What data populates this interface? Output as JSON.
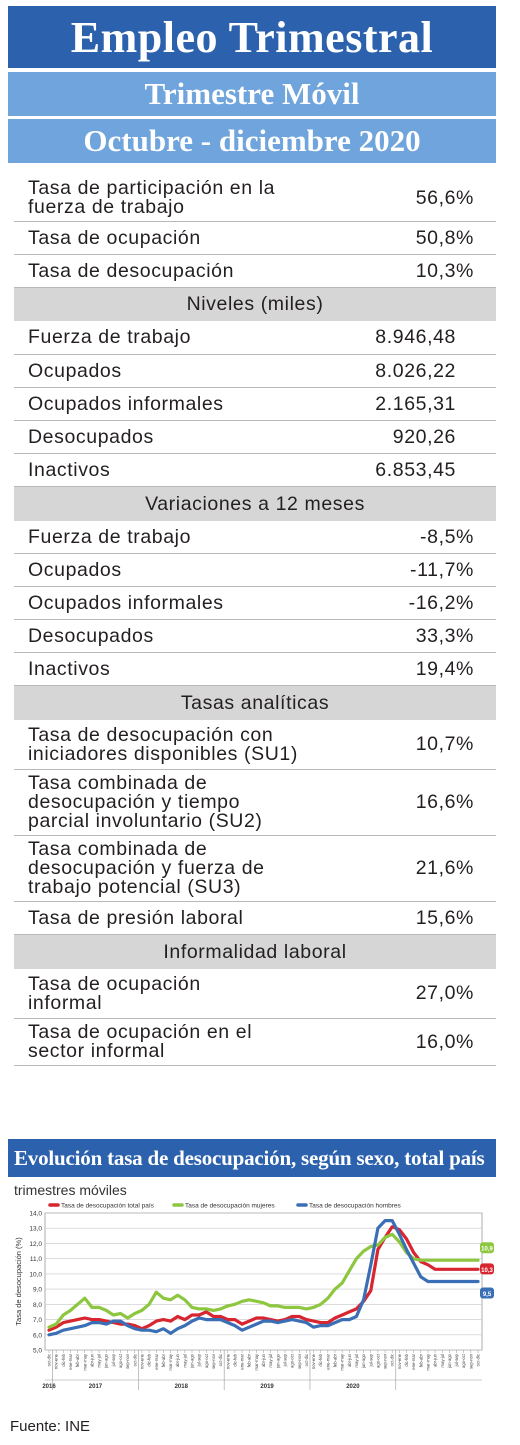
{
  "header": {
    "title": "Empleo Trimestral",
    "subtitle": "Trimestre Móvil",
    "period": "Octubre - diciembre 2020"
  },
  "rows": [
    {
      "type": "row",
      "label": "Tasa de participación en la\nfuerza de trabajo",
      "value": "56,6%"
    },
    {
      "type": "row",
      "label": "Tasa de ocupación",
      "value": "50,8%"
    },
    {
      "type": "row",
      "label": "Tasa de desocupación",
      "value": "10,3%"
    },
    {
      "type": "section",
      "label": "Niveles (miles)"
    },
    {
      "type": "row",
      "label": "Fuerza de trabajo",
      "value": "8.946,48"
    },
    {
      "type": "row",
      "label": "Ocupados",
      "value": "8.026,22"
    },
    {
      "type": "row",
      "label": "Ocupados informales",
      "value": "2.165,31"
    },
    {
      "type": "row",
      "label": "Desocupados",
      "value": "920,26"
    },
    {
      "type": "row",
      "label": "Inactivos",
      "value": "6.853,45"
    },
    {
      "type": "section",
      "label": "Variaciones a 12 meses"
    },
    {
      "type": "row",
      "label": "Fuerza de trabajo",
      "value": "-8,5%"
    },
    {
      "type": "row",
      "label": "Ocupados",
      "value": "-11,7%"
    },
    {
      "type": "row",
      "label": "Ocupados informales",
      "value": "-16,2%"
    },
    {
      "type": "row",
      "label": "Desocupados",
      "value": "33,3%"
    },
    {
      "type": "row",
      "label": "Inactivos",
      "value": "19,4%"
    },
    {
      "type": "section",
      "label": "Tasas analíticas"
    },
    {
      "type": "row",
      "label": "Tasa de desocupación con\niniciadores disponibles (SU1)",
      "value": "10,7%"
    },
    {
      "type": "row",
      "label": "Tasa combinada de\ndesocupación y tiempo\nparcial involuntario (SU2)",
      "value": "16,6%"
    },
    {
      "type": "row",
      "label": "Tasa combinada de\ndesocupación y fuerza de\ntrabajo potencial (SU3)",
      "value": "21,6%"
    },
    {
      "type": "row",
      "label": "Tasa de presión laboral",
      "value": "15,6%"
    },
    {
      "type": "section",
      "label": "Informalidad laboral"
    },
    {
      "type": "row",
      "label": "Tasa de ocupación\ninformal",
      "value": "27,0%"
    },
    {
      "type": "row",
      "label": "Tasa de ocupación en el\nsector informal",
      "value": "16,0%"
    }
  ],
  "chart_data": {
    "type": "line",
    "title": "Evolución tasa de desocupación, según sexo, total país",
    "subtitle": "trimestres móviles",
    "ylabel": "Tasa de desocupación (%)",
    "ylim": [
      5,
      14
    ],
    "yticks": [
      "5,0",
      "6,0",
      "7,0",
      "8,0",
      "9,0",
      "10,0",
      "11,0",
      "12,0",
      "13,0",
      "14,0"
    ],
    "grid": true,
    "legend_position": "top",
    "x": [
      "oct-dic",
      "nov-ene",
      "dic-feb",
      "ene-mar",
      "feb-abr",
      "mar-may",
      "abr-jun",
      "may-jul",
      "jun-ago",
      "jul-sep",
      "ago-oct",
      "sep-nov",
      "oct-dic",
      "nov-ene",
      "dic-feb",
      "ene-mar",
      "feb-abr",
      "mar-may",
      "abr-jun",
      "may-jul",
      "jun-ago",
      "jul-sep",
      "ago-oct",
      "sep-nov",
      "oct-dic",
      "nov-ene",
      "dic-feb",
      "ene-mar",
      "feb-abr",
      "mar-may",
      "abr-jun",
      "may-jul",
      "jun-ago",
      "jul-sep",
      "ago-oct",
      "sep-nov",
      "oct-dic",
      "nov-ene",
      "dic-feb",
      "ene-mar",
      "feb-abr",
      "mar-may",
      "abr-jun",
      "may-jul",
      "jun-ago",
      "jul-sep",
      "ago-oct",
      "sep-nov",
      "oct-dic",
      "nov-ene",
      "dic-feb",
      "ene-mar",
      "feb-abr",
      "mar-may",
      "abr-jun",
      "may-jul",
      "jun-ago",
      "jul-sep",
      "ago-oct",
      "sep-nov",
      "oct-dic"
    ],
    "year_labels": [
      {
        "label": "2016",
        "index": 0
      },
      {
        "label": "2017",
        "index": 6.5
      },
      {
        "label": "2018",
        "index": 18.5
      },
      {
        "label": "2019",
        "index": 30.5
      },
      {
        "label": "2020",
        "index": 42.5
      }
    ],
    "year_boundaries": [
      0.5,
      12.5,
      24.5,
      36.5,
      48.5
    ],
    "series": [
      {
        "name": "Tasa de desocupación total país",
        "color": "#d7262f",
        "values": [
          6.3,
          6.5,
          6.8,
          6.9,
          7.0,
          7.1,
          7.0,
          7.0,
          6.9,
          6.8,
          6.7,
          6.7,
          6.6,
          6.4,
          6.6,
          6.9,
          7.0,
          6.9,
          7.2,
          7.0,
          7.3,
          7.3,
          7.5,
          7.2,
          7.2,
          7.0,
          7.0,
          6.7,
          6.9,
          7.1,
          7.1,
          7.0,
          6.9,
          7.0,
          7.2,
          7.2,
          7.0,
          6.9,
          6.8,
          6.8,
          7.1,
          7.3,
          7.5,
          7.7,
          8.2,
          8.9,
          11.6,
          12.4,
          13.1,
          12.9,
          12.3,
          11.4,
          10.8,
          10.6,
          10.3,
          10.3,
          10.3,
          10.3,
          10.3,
          10.3,
          10.3
        ],
        "end_label": "10,3"
      },
      {
        "name": "Tasa de desocupación mujeres",
        "color": "#8dc63f",
        "values": [
          6.5,
          6.7,
          7.3,
          7.6,
          8.0,
          8.4,
          7.8,
          7.8,
          7.6,
          7.3,
          7.4,
          7.1,
          7.4,
          7.6,
          8.0,
          8.8,
          8.4,
          8.3,
          8.6,
          8.3,
          7.8,
          7.7,
          7.7,
          7.6,
          7.7,
          7.9,
          8.0,
          8.2,
          8.3,
          8.2,
          8.1,
          7.9,
          7.9,
          7.8,
          7.8,
          7.8,
          7.7,
          7.8,
          8.0,
          8.4,
          9.0,
          9.4,
          10.2,
          11.0,
          11.5,
          11.8,
          11.9,
          12.4,
          12.6,
          12.1,
          11.4,
          11.0,
          10.9,
          10.9,
          10.9,
          10.9,
          10.9,
          10.9,
          10.9,
          10.9,
          10.9
        ],
        "end_label": "10,9"
      },
      {
        "name": "Tasa de desocupación hombres",
        "color": "#3a6fb6",
        "values": [
          6.0,
          6.1,
          6.3,
          6.4,
          6.5,
          6.6,
          6.8,
          6.8,
          6.7,
          6.9,
          6.9,
          6.6,
          6.4,
          6.3,
          6.3,
          6.2,
          6.4,
          6.1,
          6.4,
          6.6,
          6.9,
          7.1,
          7.0,
          7.0,
          7.0,
          6.8,
          6.6,
          6.3,
          6.5,
          6.7,
          6.9,
          6.9,
          6.8,
          6.9,
          7.0,
          6.9,
          6.8,
          6.5,
          6.6,
          6.6,
          6.8,
          7.0,
          7.0,
          7.2,
          8.3,
          10.6,
          13.0,
          13.5,
          13.5,
          12.6,
          11.6,
          10.7,
          9.8,
          9.5,
          9.5,
          9.5,
          9.5,
          9.5,
          9.5,
          9.5,
          9.5
        ],
        "end_label": "9,5"
      }
    ]
  },
  "footer": {
    "source": "Fuente: INE"
  }
}
